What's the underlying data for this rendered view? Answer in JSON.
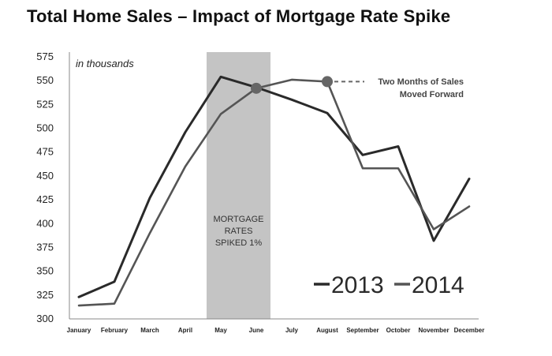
{
  "title": "Total Home Sales – Impact of Mortgage Rate Spike",
  "chart_data": {
    "type": "line",
    "title": "Total Home Sales – Impact of Mortgage Rate Spike",
    "unit_label": "in thousands",
    "xlabel": "",
    "ylabel": "",
    "categories": [
      "January",
      "February",
      "March",
      "April",
      "May",
      "June",
      "July",
      "August",
      "September",
      "October",
      "November",
      "December"
    ],
    "ylim": [
      300,
      575
    ],
    "yticks": [
      300,
      325,
      350,
      375,
      400,
      425,
      450,
      475,
      500,
      525,
      550,
      575
    ],
    "grid": false,
    "legend_position": "bottom-right",
    "series": [
      {
        "name": "2013",
        "color": "#2a2a2a",
        "values": [
          323,
          339,
          427,
          496,
          554,
          543,
          530,
          516,
          472,
          481,
          382,
          447
        ]
      },
      {
        "name": "2014",
        "color": "#555555",
        "values": [
          314,
          316,
          390,
          460,
          515,
          542,
          551,
          549,
          458,
          458,
          394,
          418
        ]
      }
    ],
    "highlight_band": {
      "from": "May",
      "to": "June",
      "label_lines": [
        "MORTGAGE",
        "RATES",
        "SPIKED 1%"
      ],
      "color": "#c4c4c4"
    },
    "markers": [
      {
        "category": "June",
        "value": 542
      },
      {
        "category": "August",
        "value": 549
      }
    ],
    "annotation": {
      "lines": [
        "Two Months of Sales",
        "Moved Forward"
      ]
    },
    "legend": [
      {
        "label": "2013"
      },
      {
        "label": "2014"
      }
    ]
  }
}
